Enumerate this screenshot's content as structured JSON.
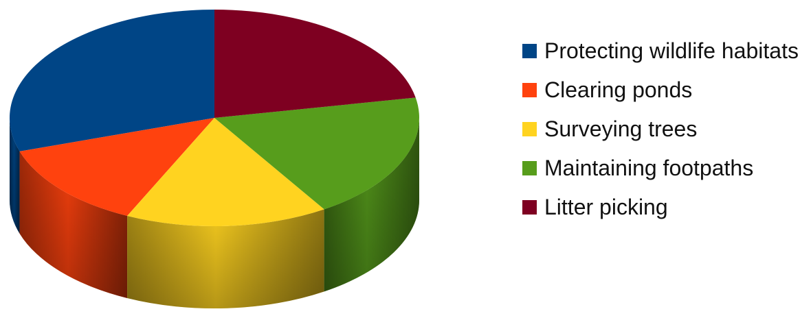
{
  "chart_data": {
    "type": "pie",
    "style": "3d",
    "legend_position": "right",
    "slices": [
      {
        "label": "Protecting wildlife habitats",
        "value": 30,
        "color": "#004586"
      },
      {
        "label": "Clearing ponds",
        "value": 13,
        "color": "#ff420e"
      },
      {
        "label": "Surveying trees",
        "value": 16,
        "color": "#ffd320"
      },
      {
        "label": "Maintaining footpaths",
        "value": 19,
        "color": "#579d1c"
      },
      {
        "label": "Litter picking",
        "value": 22,
        "color": "#7e0021"
      }
    ]
  }
}
